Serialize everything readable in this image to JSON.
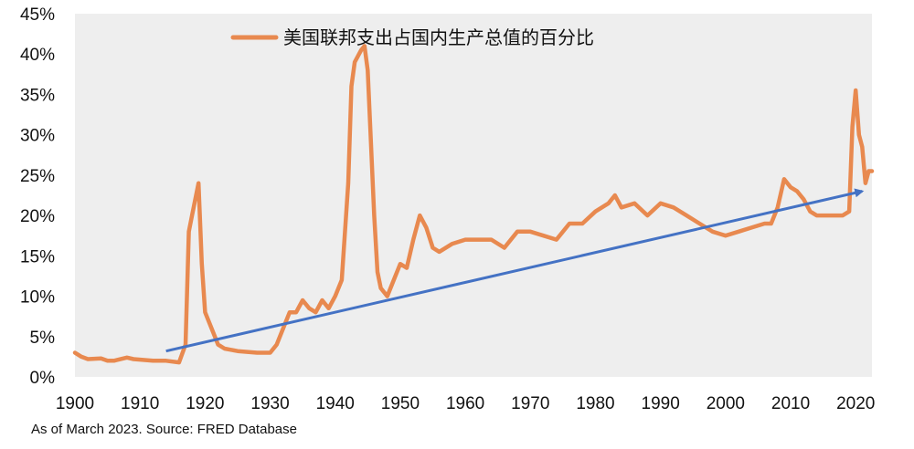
{
  "chart_data": {
    "type": "line",
    "title": "",
    "xlabel": "",
    "ylabel": "",
    "xlim": [
      1900,
      2022.5
    ],
    "ylim": [
      0,
      45
    ],
    "x_ticks": [
      "1900",
      "1910",
      "1920",
      "1930",
      "1940",
      "1950",
      "1960",
      "1970",
      "1980",
      "1990",
      "2000",
      "2010",
      "2020"
    ],
    "y_ticks": [
      "0%",
      "5%",
      "10%",
      "15%",
      "20%",
      "25%",
      "30%",
      "35%",
      "40%",
      "45%"
    ],
    "grid": false,
    "legend_position": "top-center",
    "series": [
      {
        "name": "美国联邦支出占国内生产总值的百分比",
        "color": "#E8894F",
        "x": [
          1900,
          1901,
          1902,
          1904,
          1905,
          1906,
          1908,
          1909,
          1912,
          1914,
          1916,
          1917,
          1917.5,
          1918,
          1919,
          1919.5,
          1920,
          1921,
          1922,
          1923,
          1925,
          1928,
          1930,
          1931,
          1932,
          1933,
          1934,
          1935,
          1936,
          1937,
          1938,
          1939,
          1940,
          1941,
          1942,
          1942.5,
          1943,
          1944,
          1944.5,
          1945,
          1946,
          1946.5,
          1947,
          1948,
          1949,
          1950,
          1951,
          1952,
          1953,
          1954,
          1955,
          1956,
          1958,
          1960,
          1962,
          1964,
          1966,
          1968,
          1970,
          1972,
          1974,
          1976,
          1978,
          1980,
          1982,
          1983,
          1984,
          1986,
          1988,
          1990,
          1992,
          1994,
          1996,
          1998,
          2000,
          2002,
          2004,
          2006,
          2007,
          2008,
          2009,
          2010,
          2011,
          2012,
          2013,
          2014,
          2016,
          2018,
          2019,
          2019.5,
          2020,
          2020.5,
          2021,
          2021.5,
          2022,
          2022.5
        ],
        "values": [
          3.0,
          2.5,
          2.2,
          2.3,
          2.0,
          2.0,
          2.4,
          2.2,
          2.0,
          2.0,
          1.8,
          4.0,
          18.0,
          20.0,
          24.0,
          14.0,
          8.0,
          6.0,
          4.0,
          3.5,
          3.2,
          3.0,
          3.0,
          4.0,
          6.0,
          8.0,
          8.0,
          9.5,
          8.5,
          8.0,
          9.5,
          8.5,
          10.0,
          12.0,
          24.0,
          36.0,
          39.0,
          40.5,
          41.0,
          38.0,
          20.0,
          13.0,
          11.0,
          10.0,
          12.0,
          14.0,
          13.5,
          17.0,
          20.0,
          18.5,
          16.0,
          15.5,
          16.5,
          17.0,
          17.0,
          17.0,
          16.0,
          18.0,
          18.0,
          17.5,
          17.0,
          19.0,
          19.0,
          20.5,
          21.5,
          22.5,
          21.0,
          21.5,
          20.0,
          21.5,
          21.0,
          20.0,
          19.0,
          18.0,
          17.5,
          18.0,
          18.5,
          19.0,
          19.0,
          21.0,
          24.5,
          23.5,
          23.0,
          22.0,
          20.5,
          20.0,
          20.0,
          20.0,
          20.5,
          31.0,
          35.5,
          30.0,
          28.5,
          24.0,
          25.5,
          25.5
        ]
      }
    ],
    "annotations": [
      {
        "type": "arrow",
        "color": "#4472C4",
        "from": [
          1914,
          3.2
        ],
        "to": [
          2021,
          23.0
        ]
      }
    ]
  },
  "source_note": "As of March 2023. Source: FRED Database"
}
